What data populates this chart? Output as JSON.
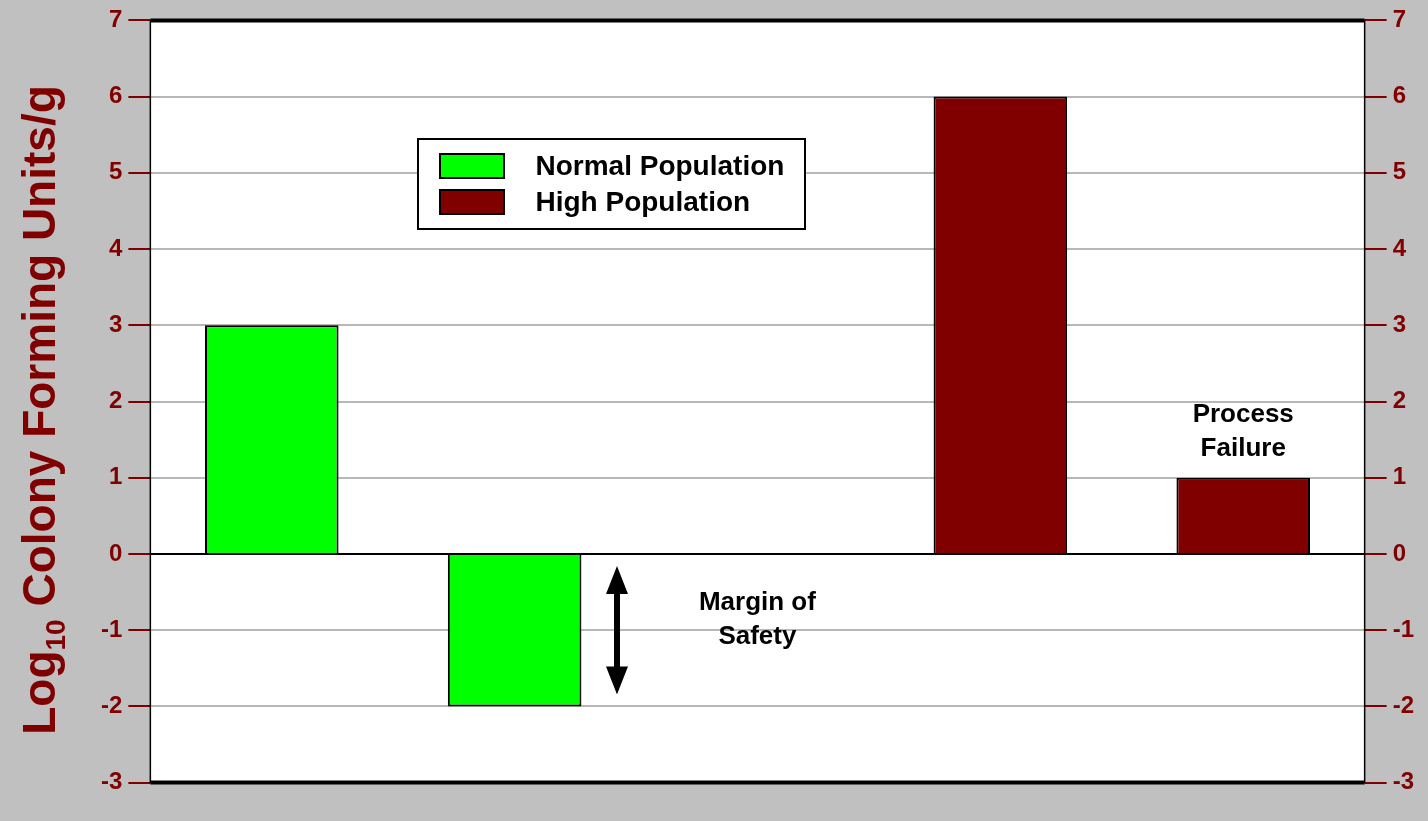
{
  "chart_data": {
    "type": "bar",
    "ylabel": "Log$_{10}$ Colony Forming Units/g",
    "categories": [
      null,
      null,
      null,
      null,
      null
    ],
    "series": [
      {
        "name": "Normal Population",
        "color": "#00ff00",
        "values": [
          3,
          -2,
          null,
          null,
          null
        ]
      },
      {
        "name": "High Population",
        "color": "#800000",
        "values": [
          null,
          null,
          null,
          6,
          1
        ]
      }
    ],
    "ylim": [
      -3,
      7
    ],
    "yticks": [
      -3,
      -2,
      -1,
      0,
      1,
      2,
      3,
      4,
      5,
      6,
      7
    ],
    "y2lim": [
      -3,
      7
    ],
    "y2ticks": [
      -3,
      -2,
      -1,
      0,
      1,
      2,
      3,
      4,
      5,
      6,
      7
    ],
    "ref_lines": [
      {
        "axis": "y",
        "value": 0,
        "color": "#000000"
      }
    ],
    "annotations": [
      "Margin of Safety",
      "Process Failure"
    ],
    "grid": "y",
    "legend": "top"
  }
}
